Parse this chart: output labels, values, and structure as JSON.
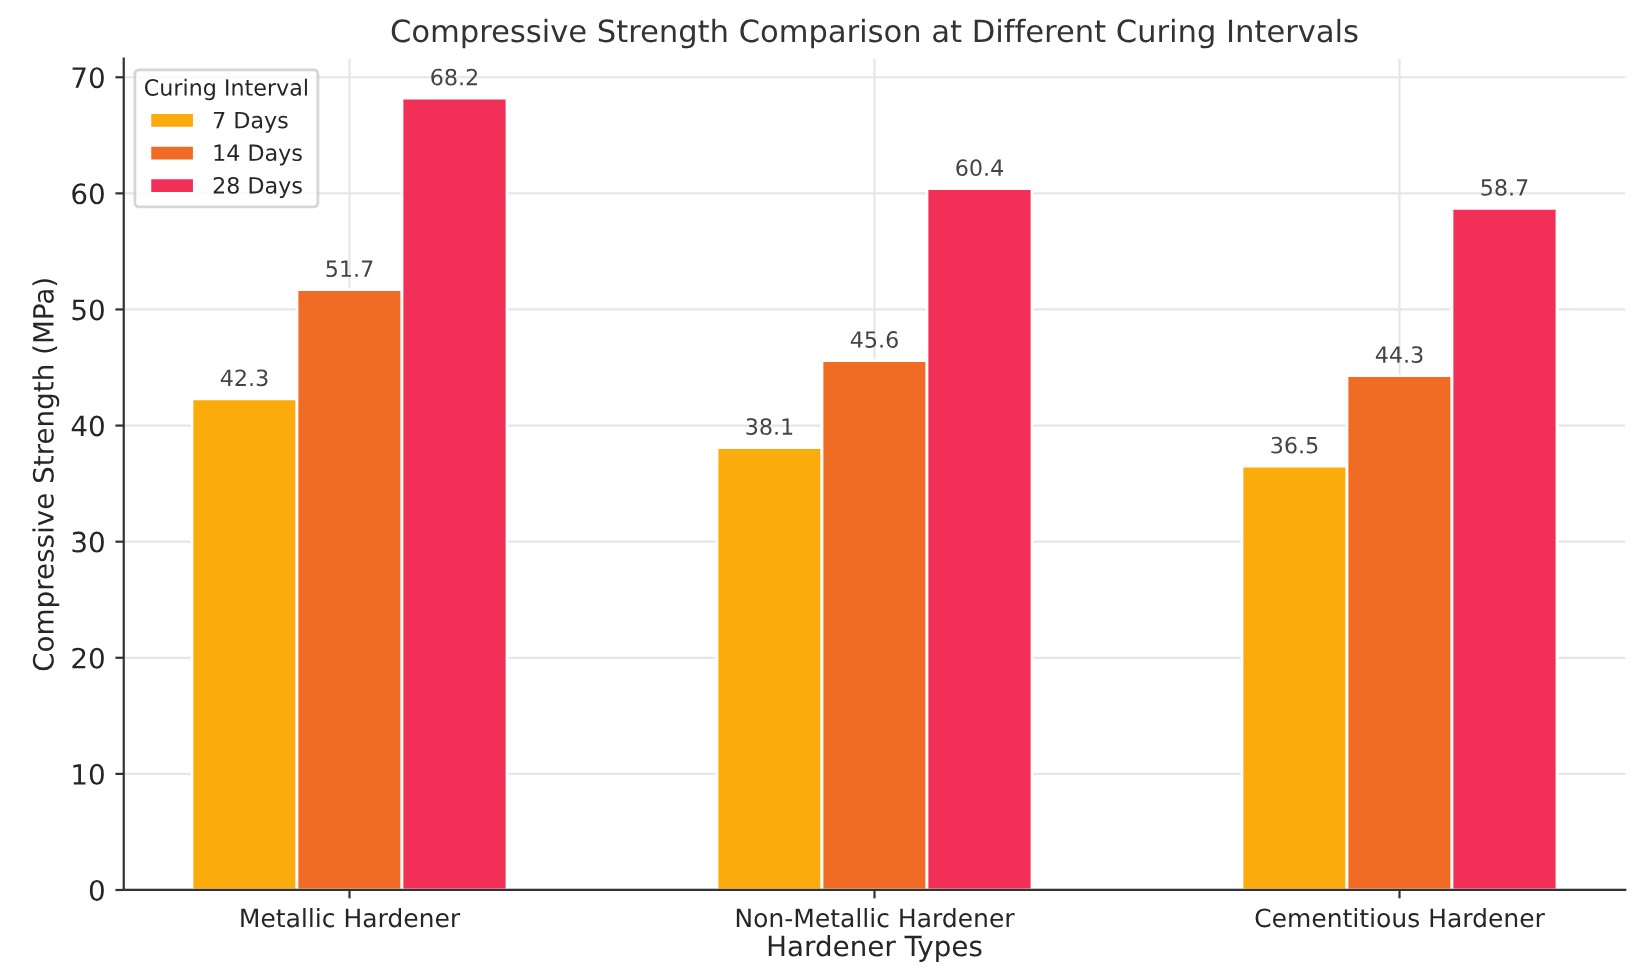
{
  "chart_data": {
    "type": "bar",
    "title": "Compressive Strength Comparison at Different Curing Intervals",
    "xlabel": "Hardener Types",
    "ylabel": "Compressive Strength (MPa)",
    "legend_title": "Curing Interval",
    "categories": [
      "Metallic Hardener",
      "Non-Metallic Hardener",
      "Cementitious Hardener"
    ],
    "series": [
      {
        "name": "7 Days",
        "color": "#fbab0b",
        "values": [
          42.3,
          38.1,
          36.5
        ]
      },
      {
        "name": "14 Days",
        "color": "#f06b24",
        "values": [
          51.7,
          45.6,
          44.3
        ]
      },
      {
        "name": "28 Days",
        "color": "#f22f57",
        "values": [
          68.2,
          60.4,
          58.7
        ]
      }
    ],
    "ylim": [
      0,
      71.6
    ],
    "yticks": [
      0,
      10,
      20,
      30,
      40,
      50,
      60,
      70
    ],
    "grid": true,
    "legend": "top left",
    "data_labels": true
  }
}
